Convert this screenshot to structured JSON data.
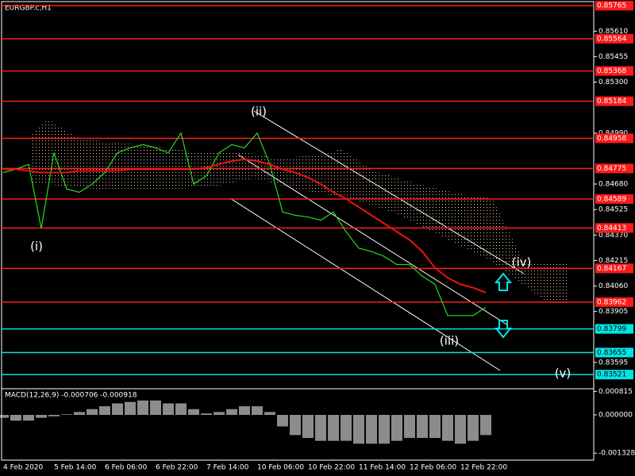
{
  "chart_data": [
    {
      "type": "line",
      "title": "EURGBP.c,H1",
      "categories": [
        "4 Feb 2020",
        null,
        null,
        null,
        "5 Feb 14:00",
        null,
        null,
        null,
        "6 Feb 06:00",
        null,
        null,
        null,
        "6 Feb 22:00",
        null,
        null,
        null,
        "7 Feb 14:00",
        null,
        null,
        null,
        "10 Feb 06:00",
        null,
        null,
        null,
        "10 Feb 22:00",
        null,
        null,
        null,
        "11 Feb 14:00",
        null,
        null,
        null,
        "12 Feb 06:00",
        null,
        null,
        null,
        "12 Feb 22:00",
        null,
        null
      ],
      "series": [
        {
          "color": "#22dd22",
          "values": [
            0.8475,
            0.8477,
            0.848,
            0.8441,
            0.8487,
            0.8465,
            0.8463,
            0.8468,
            0.8475,
            0.8487,
            0.849,
            0.8492,
            0.849,
            0.8487,
            0.8499,
            0.8468,
            0.8473,
            0.8487,
            0.8492,
            0.849,
            0.8499,
            0.848,
            0.8451,
            0.8449,
            0.8448,
            0.8446,
            0.8451,
            0.8439,
            0.8429,
            0.8427,
            0.8424,
            0.8419,
            0.8419,
            0.8412,
            0.8407,
            0.8388,
            0.8388,
            0.8388,
            0.8393
          ]
        },
        {
          "color": "#ee1111",
          "values": [
            0.8477,
            0.8477,
            0.8476,
            0.8475,
            0.8475,
            0.8475,
            0.8476,
            0.8476,
            0.8476,
            0.8476,
            0.8477,
            0.8477,
            0.8477,
            0.8477,
            0.8477,
            0.8477,
            0.8478,
            0.848,
            0.8482,
            0.8483,
            0.8482,
            0.848,
            0.8477,
            0.8475,
            0.8472,
            0.8468,
            0.8463,
            0.8459,
            0.8454,
            0.8449,
            0.8444,
            0.8439,
            0.8434,
            0.8427,
            0.8417,
            0.8411,
            0.8407,
            0.8405,
            0.8402
          ]
        }
      ],
      "ylim": [
        0.83435,
        0.8579
      ],
      "yticks": [
        {
          "value": 0.8561,
          "label": "0.85610"
        },
        0.85455,
        {
          "value": 0.853,
          "label": "0.85300"
        },
        {
          "value": 0.8499,
          "label": "0.84990"
        },
        {
          "value": 0.8468,
          "label": "0.84680"
        },
        0.84525,
        {
          "value": 0.8437,
          "label": "0.84370"
        },
        0.84215,
        {
          "value": 0.8406,
          "label": "0.84060"
        },
        0.83905,
        0.83595
      ],
      "levels": [
        0.85765,
        0.85564,
        0.85368,
        0.85184,
        0.84958,
        0.84775,
        0.84589,
        0.84413,
        0.84167,
        0.83962
      ],
      "level_color": "#ff1a1a",
      "support_levels": [
        0.83799,
        0.83655,
        0.83521
      ],
      "support_color": "#00e5e5",
      "annotations": [
        "(i)",
        "(ii)",
        "(iii)",
        "(iv)",
        "(v)"
      ]
    },
    {
      "type": "bar",
      "title": "MACD(12,26,9) -0.000706 -0.000918",
      "values": [
        -0.0001,
        -0.0002,
        -0.0002,
        -0.0001,
        -5e-05,
        2e-05,
        0.0001,
        0.0002,
        0.0003,
        0.0004,
        0.00045,
        0.0005,
        0.0005,
        0.0004,
        0.0004,
        0.0002,
        5e-05,
        0.0001,
        0.0002,
        0.0003,
        0.0003,
        0.0001,
        -0.0004,
        -0.0007,
        -0.0008,
        -0.0009,
        -0.0009,
        -0.0009,
        -0.001,
        -0.001,
        -0.001,
        -0.0009,
        -0.0008,
        -0.0008,
        -0.0008,
        -0.0009,
        -0.001,
        -0.0009,
        -0.0007
      ],
      "color": "#c8c8c8",
      "ylim": [
        -0.00157,
        0.000908
      ],
      "yticks": [
        0.000815,
        {
          "value": 0,
          "label": "0.000000"
        },
        -0.001328
      ]
    }
  ]
}
